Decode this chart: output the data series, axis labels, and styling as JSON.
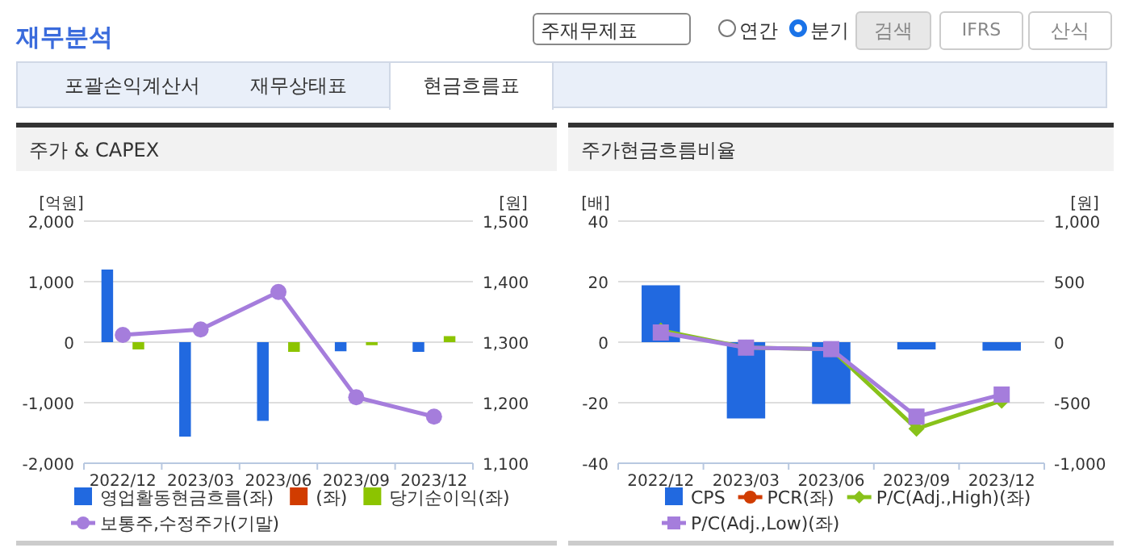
{
  "chart_data": [
    {
      "type": "bar",
      "title": "주가 & CAPEX",
      "ylabel": "[억원]",
      "y2label": "[원]",
      "annotations": [
        "재무분석",
        "주재무제표",
        "연간",
        "분기",
        "검색",
        "IFRS",
        "산식",
        "포괄손익계산서",
        "재무상태표",
        "현금흐름표"
      ],
      "categories": [
        "2022/12",
        "2023/03",
        "2023/06",
        "2023/09",
        "2023/12"
      ],
      "series": [
        {
          "name": "영업활동현금흐름(좌)",
          "color": "#2169e0",
          "values": [
            1200,
            -1560,
            -1300,
            -150,
            -160
          ]
        },
        {
          "name": "(좌)",
          "color": "#d13c00",
          "values": [
            null,
            null,
            null,
            null,
            null
          ]
        },
        {
          "name": "당기순이익(좌)",
          "color": "#8cc400",
          "values": [
            -120,
            null,
            -160,
            -50,
            100
          ]
        },
        {
          "name": "보통주,수정주가(기말)",
          "type": "line",
          "axis": "y2",
          "marker": "circle",
          "color": "#a57ddc",
          "values": [
            1312,
            1321,
            1383,
            1209,
            1177
          ]
        }
      ],
      "ylim": [
        -2000,
        2000
      ],
      "yticks": [
        {
          "value": -2000,
          "label": "-2,000"
        },
        {
          "value": -1000,
          "label": "-1,000"
        },
        0,
        {
          "value": 1000,
          "label": "1,000"
        },
        {
          "value": 2000,
          "label": "2,000"
        }
      ],
      "y2lim": [
        1100,
        1500
      ],
      "y2ticks": [
        {
          "value": 1100,
          "label": "1,100"
        },
        {
          "value": 1200,
          "label": "1,200"
        },
        {
          "value": 1300,
          "label": "1,300"
        },
        {
          "value": 1400,
          "label": "1,400"
        },
        {
          "value": 1500,
          "label": "1,500"
        }
      ],
      "grid": "y",
      "legend": "bottom"
    },
    {
      "type": "bar",
      "title": "주가현금흐름비율",
      "ylabel": "[배]",
      "y2label": "[원]",
      "categories": [
        "2022/12",
        "2023/03",
        "2023/06",
        "2023/09",
        "2023/12"
      ],
      "series": [
        {
          "name": "CPS",
          "axis": "y2",
          "color": "#2169e0",
          "values": [
            470,
            -630,
            -510,
            -60,
            -70
          ]
        },
        {
          "name": "PCR(좌)",
          "type": "line",
          "marker": "circle",
          "color": "#d13c00",
          "values": [
            null,
            null,
            null,
            null,
            null
          ]
        },
        {
          "name": "P/C(Adj.,High)(좌)",
          "type": "line",
          "marker": "diamond",
          "color": "#88c21a",
          "values": [
            3.9,
            -1.8,
            -2.3,
            -28.6,
            -19.3
          ]
        },
        {
          "name": "P/C(Adj.,Low)(좌)",
          "type": "line",
          "marker": "square",
          "color": "#a57ddc",
          "values": [
            3.2,
            -1.8,
            -2.3,
            -24.6,
            -17.3
          ]
        }
      ],
      "ylim": [
        -40,
        40
      ],
      "yticks": [
        -40,
        -20,
        0,
        20,
        40
      ],
      "y2lim": [
        -1000,
        1000
      ],
      "y2ticks": [
        {
          "value": -1000,
          "label": "-1,000"
        },
        -500,
        0,
        500,
        {
          "value": 1000,
          "label": "1,000"
        }
      ],
      "grid": "y",
      "legend": "bottom"
    }
  ]
}
